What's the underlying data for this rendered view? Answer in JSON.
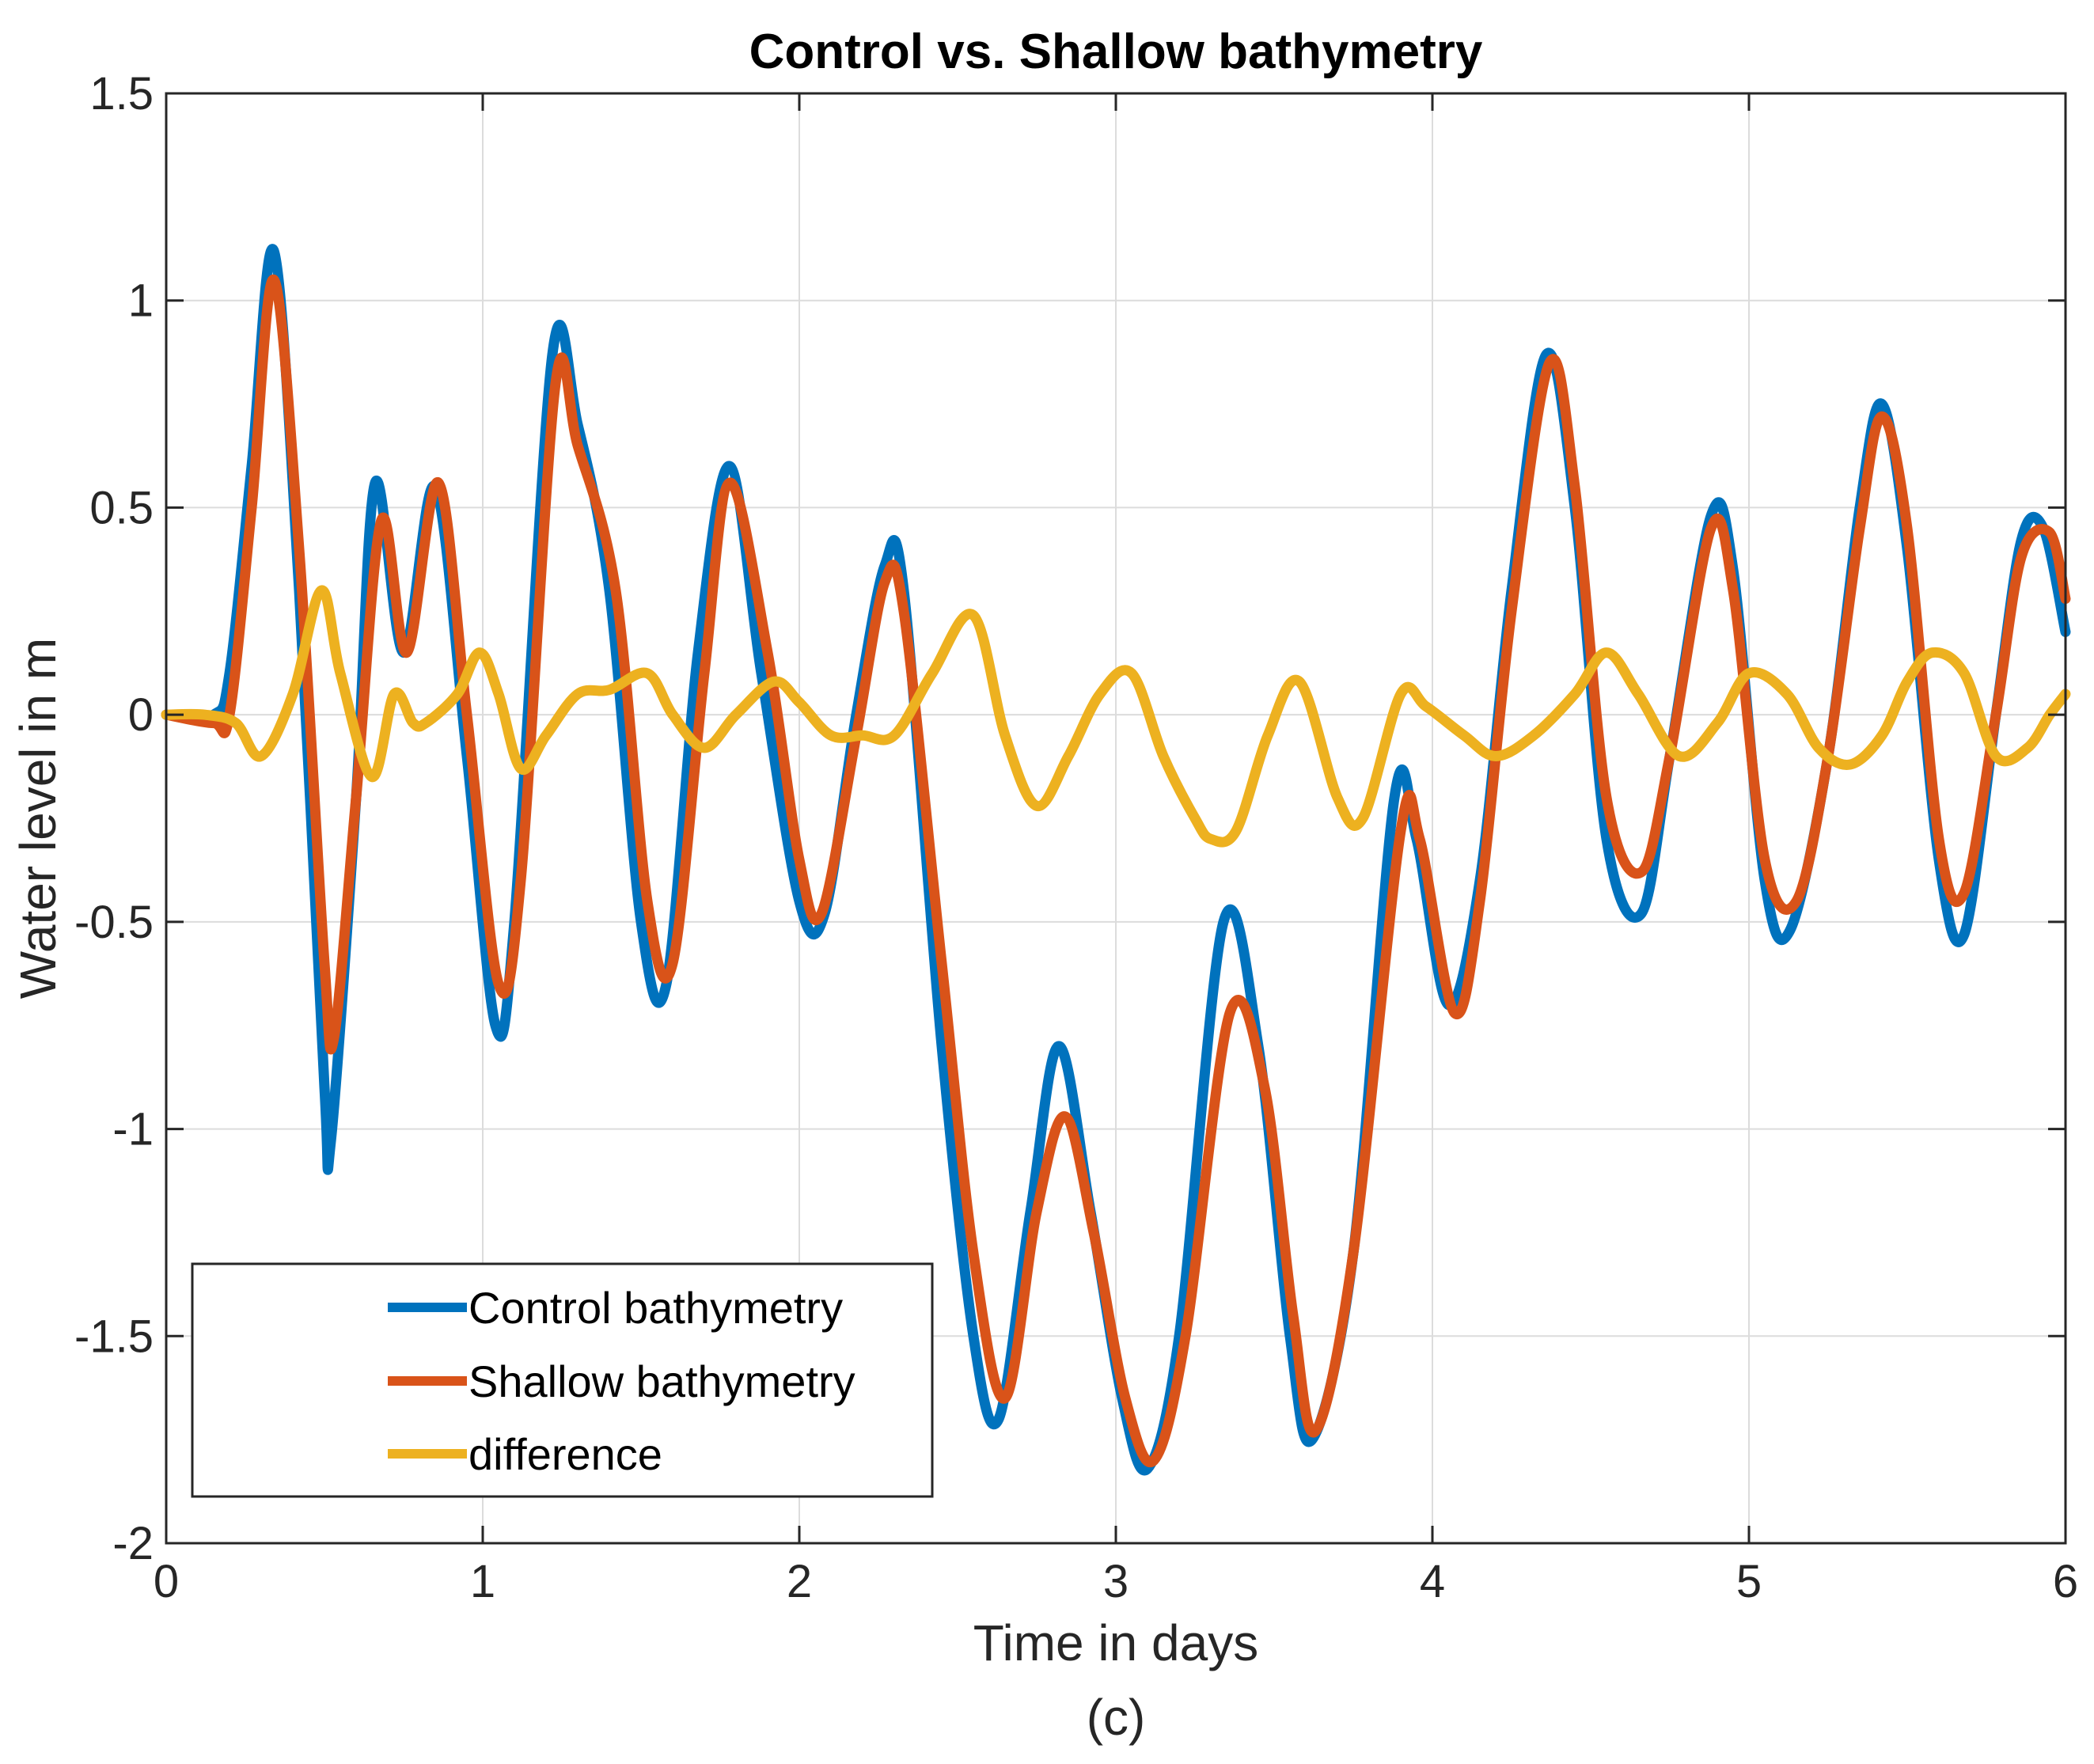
{
  "chart_data": {
    "type": "line",
    "title": "Control vs. Shallow bathymetry",
    "xlabel": "Time in days",
    "ylabel": "Water level in m",
    "caption": "(c)",
    "xlim": [
      0,
      6
    ],
    "ylim": [
      -2,
      1.5
    ],
    "xticks": [
      0,
      1,
      2,
      3,
      4,
      5,
      6
    ],
    "yticks": [
      -2,
      -1.5,
      -1,
      -0.5,
      0,
      0.5,
      1,
      1.5
    ],
    "xtick_labels": [
      "0",
      "1",
      "2",
      "3",
      "4",
      "5",
      "6"
    ],
    "ytick_labels": [
      "-2",
      "-1.5",
      "-1",
      "-0.5",
      "0",
      "0.5",
      "1",
      "1.5"
    ],
    "grid": true,
    "legend_position": "bottom-left",
    "series": [
      {
        "name": "Control bathymetry",
        "color": "#0072BD",
        "x": [
          0,
          0.15,
          0.2,
          0.27,
          0.34,
          0.42,
          0.5,
          0.52,
          0.6,
          0.66,
          0.75,
          0.85,
          0.95,
          1.04,
          1.1,
          1.22,
          1.3,
          1.4,
          1.5,
          1.58,
          1.68,
          1.78,
          1.88,
          2.0,
          2.08,
          2.18,
          2.27,
          2.33,
          2.45,
          2.55,
          2.63,
          2.73,
          2.82,
          2.92,
          3.02,
          3.1,
          3.2,
          3.34,
          3.45,
          3.55,
          3.62,
          3.75,
          3.88,
          3.95,
          4.05,
          4.15,
          4.25,
          4.36,
          4.45,
          4.55,
          4.66,
          4.75,
          4.88,
          4.95,
          5.05,
          5.13,
          5.25,
          5.35,
          5.42,
          5.5,
          5.6,
          5.68,
          5.78,
          5.86,
          5.93,
          6.0
        ],
        "y": [
          0,
          0.0,
          0.1,
          0.6,
          1.12,
          0.3,
          -0.9,
          -1.03,
          -0.2,
          0.56,
          0.15,
          0.55,
          -0.1,
          -0.75,
          -0.5,
          0.87,
          0.7,
          0.3,
          -0.5,
          -0.65,
          0.15,
          0.6,
          0.1,
          -0.45,
          -0.48,
          0.0,
          0.36,
          0.3,
          -0.8,
          -1.5,
          -1.7,
          -1.2,
          -0.8,
          -1.2,
          -1.65,
          -1.82,
          -1.5,
          -0.5,
          -0.8,
          -1.5,
          -1.75,
          -1.3,
          -0.2,
          -0.3,
          -0.7,
          -0.4,
          0.3,
          0.87,
          0.5,
          -0.3,
          -0.48,
          -0.1,
          0.48,
          0.35,
          -0.4,
          -0.52,
          -0.1,
          0.5,
          0.75,
          0.4,
          -0.35,
          -0.53,
          0.0,
          0.42,
          0.45,
          0.2
        ]
      },
      {
        "name": "Shallow bathymetry",
        "color": "#D95319",
        "x": [
          0,
          0.15,
          0.2,
          0.27,
          0.34,
          0.42,
          0.5,
          0.53,
          0.6,
          0.68,
          0.76,
          0.86,
          0.95,
          1.05,
          1.12,
          1.23,
          1.3,
          1.42,
          1.52,
          1.6,
          1.7,
          1.78,
          1.9,
          2.0,
          2.07,
          2.18,
          2.27,
          2.33,
          2.45,
          2.55,
          2.65,
          2.75,
          2.84,
          2.93,
          3.03,
          3.12,
          3.22,
          3.36,
          3.47,
          3.56,
          3.63,
          3.75,
          3.9,
          3.96,
          4.07,
          4.15,
          4.25,
          4.37,
          4.45,
          4.55,
          4.66,
          4.75,
          4.88,
          4.95,
          5.05,
          5.15,
          5.25,
          5.35,
          5.42,
          5.5,
          5.6,
          5.68,
          5.78,
          5.86,
          5.95,
          6.0
        ],
        "y": [
          0,
          -0.02,
          0.0,
          0.5,
          1.05,
          0.4,
          -0.6,
          -0.78,
          -0.2,
          0.47,
          0.15,
          0.56,
          0.0,
          -0.65,
          -0.4,
          0.8,
          0.65,
          0.3,
          -0.45,
          -0.6,
          0.1,
          0.56,
          0.15,
          -0.35,
          -0.48,
          -0.05,
          0.32,
          0.25,
          -0.6,
          -1.3,
          -1.65,
          -1.2,
          -0.97,
          -1.25,
          -1.65,
          -1.8,
          -1.5,
          -0.72,
          -0.9,
          -1.45,
          -1.73,
          -1.3,
          -0.28,
          -0.3,
          -0.72,
          -0.45,
          0.25,
          0.85,
          0.55,
          -0.2,
          -0.38,
          -0.1,
          0.45,
          0.3,
          -0.35,
          -0.45,
          -0.1,
          0.45,
          0.72,
          0.45,
          -0.3,
          -0.43,
          0.0,
          0.38,
          0.44,
          0.28
        ]
      },
      {
        "name": "difference",
        "color": "#EDB120",
        "x": [
          0,
          0.12,
          0.22,
          0.3,
          0.4,
          0.49,
          0.55,
          0.65,
          0.72,
          0.78,
          0.82,
          0.92,
          0.99,
          1.05,
          1.12,
          1.2,
          1.3,
          1.4,
          1.52,
          1.6,
          1.7,
          1.8,
          1.92,
          2.0,
          2.1,
          2.2,
          2.3,
          2.42,
          2.55,
          2.65,
          2.75,
          2.85,
          2.95,
          3.05,
          3.15,
          3.25,
          3.3,
          3.38,
          3.48,
          3.58,
          3.7,
          3.78,
          3.9,
          3.98,
          4.1,
          4.2,
          4.32,
          4.45,
          4.55,
          4.65,
          4.78,
          4.9,
          5.0,
          5.12,
          5.22,
          5.32,
          5.42,
          5.5,
          5.58,
          5.68,
          5.78,
          5.88,
          5.95,
          6.0
        ],
        "y": [
          0,
          0.0,
          -0.02,
          -0.1,
          0.05,
          0.3,
          0.1,
          -0.15,
          0.05,
          -0.02,
          -0.02,
          0.05,
          0.15,
          0.05,
          -0.13,
          -0.05,
          0.05,
          0.06,
          0.1,
          0.0,
          -0.08,
          0.0,
          0.08,
          0.03,
          -0.05,
          -0.05,
          -0.05,
          0.1,
          0.24,
          -0.05,
          -0.22,
          -0.1,
          0.05,
          0.1,
          -0.1,
          -0.25,
          -0.3,
          -0.28,
          -0.05,
          0.08,
          -0.2,
          -0.25,
          0.05,
          0.02,
          -0.05,
          -0.1,
          -0.05,
          0.05,
          0.15,
          0.05,
          -0.1,
          -0.02,
          0.1,
          0.05,
          -0.08,
          -0.12,
          -0.05,
          0.08,
          0.15,
          0.1,
          -0.1,
          -0.08,
          0.0,
          0.05
        ]
      }
    ]
  }
}
